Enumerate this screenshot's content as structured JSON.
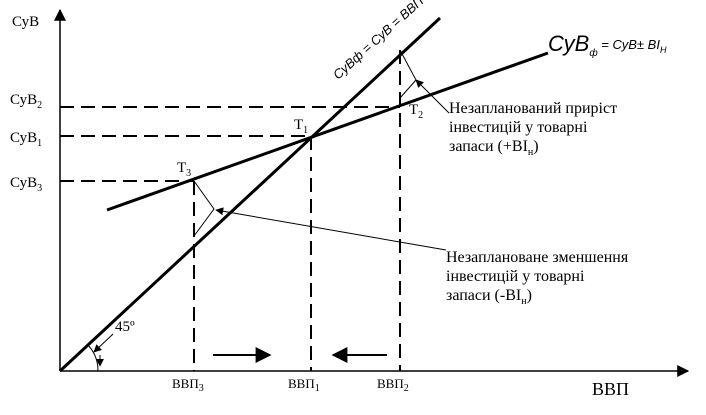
{
  "axes": {
    "y_label": "СуВ",
    "x_label": "ВВП"
  },
  "y_ticks": [
    {
      "base": "СуВ",
      "sub": "2"
    },
    {
      "base": "СуВ",
      "sub": "1"
    },
    {
      "base": "СуВ",
      "sub": "3"
    }
  ],
  "x_ticks": [
    {
      "base": "ВВП",
      "sub": "3"
    },
    {
      "base": "ВВП",
      "sub": "1"
    },
    {
      "base": "ВВП",
      "sub": "2"
    }
  ],
  "lines": {
    "diagonal_label": "СуВф = СуВ = ВВП",
    "planned_label_base": "СуВ",
    "planned_label_sub": "ф",
    "planned_label_rest": " = СуВ± ВІ",
    "planned_label_rest_sub": "Н"
  },
  "points": [
    {
      "base": "Т",
      "sub": "1"
    },
    {
      "base": "Т",
      "sub": "2"
    },
    {
      "base": "Т",
      "sub": "3"
    }
  ],
  "angle_label": "45º",
  "annotations": {
    "increase": {
      "line1": "Незапланований приріст",
      "line2": "інвестицій у товарні",
      "line3_base": "запаси (+ВІ",
      "line3_sub": "н",
      "line3_end": ")"
    },
    "decrease": {
      "line1": "Незаплановане зменшення",
      "line2": "інвестицій у товарні",
      "line3_base": "запаси (-ВІ",
      "line3_sub": "н",
      "line3_end": ")"
    }
  }
}
